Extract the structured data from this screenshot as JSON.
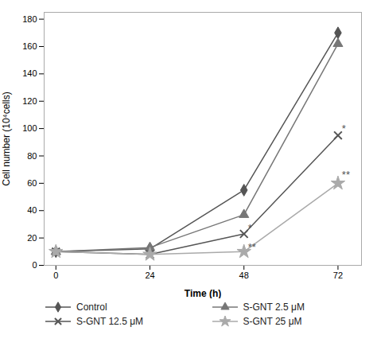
{
  "chart_data": {
    "type": "line",
    "x": [
      0,
      24,
      48,
      72
    ],
    "series": [
      {
        "name": "Control",
        "color": "#555555",
        "values": [
          10,
          12,
          55,
          170
        ],
        "marker": "diamond",
        "line_style": "solid"
      },
      {
        "name": "S-GNT 2.5 μM",
        "color": "#777777",
        "values": [
          10,
          13,
          37,
          162
        ],
        "marker": "triangle",
        "line_style": "solid"
      },
      {
        "name": "S-GNT 12.5 μM",
        "color": "#555555",
        "values": [
          10,
          8,
          23,
          95
        ],
        "marker": "x",
        "line_style": "solid"
      },
      {
        "name": "S-GNT 25 μM",
        "color": "#aaaaaa",
        "values": [
          10,
          8,
          10,
          60
        ],
        "marker": "star",
        "line_style": "solid"
      }
    ],
    "xlabel": "Time (h)",
    "ylabel": "Cell number (10⁴cells)",
    "xlim": [
      -3,
      78
    ],
    "ylim": [
      0,
      185
    ],
    "xticks": [
      0,
      24,
      48,
      72
    ],
    "yticks": [
      0,
      20,
      40,
      60,
      80,
      100,
      120,
      140,
      160,
      180
    ],
    "annotations": [
      {
        "text": "*",
        "x": 73,
        "y": 100,
        "color": "#555555"
      },
      {
        "text": "**",
        "x": 73,
        "y": 66,
        "color": "#555555"
      },
      {
        "text": "*",
        "x": 49,
        "y": 27,
        "color": "#555555"
      },
      {
        "text": "**",
        "x": 49,
        "y": 13,
        "color": "#555555"
      }
    ],
    "grid": false,
    "legend": "bottom"
  }
}
